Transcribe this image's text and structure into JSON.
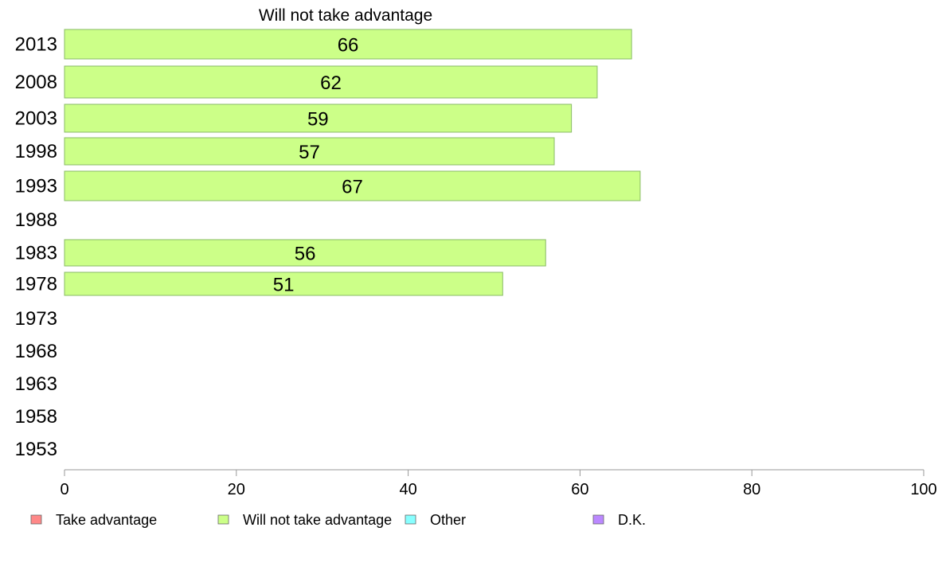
{
  "chart_data": {
    "type": "bar",
    "orientation": "horizontal",
    "title": "Will not take advantage",
    "categories": [
      "2013",
      "2008",
      "2003",
      "1998",
      "1993",
      "1988",
      "1983",
      "1978",
      "1973",
      "1968",
      "1963",
      "1958",
      "1953"
    ],
    "series": [
      {
        "name": "Will not take advantage",
        "color": "#ccff88",
        "values": [
          66,
          62,
          59,
          57,
          67,
          null,
          56,
          51,
          null,
          null,
          null,
          null,
          null
        ]
      }
    ],
    "xlim": [
      0,
      100
    ],
    "xticks": [
      0,
      20,
      40,
      60,
      80,
      100
    ],
    "xtick_labels": [
      "0",
      "20",
      "40",
      "60",
      "80",
      "100"
    ],
    "grid": false,
    "legend_position": "bottom",
    "legend": [
      {
        "label": "Take advantage",
        "color": "#ff8888"
      },
      {
        "label": "Will not take advantage",
        "color": "#ccff88"
      },
      {
        "label": "Other",
        "color": "#88ffff"
      },
      {
        "label": "D.K.",
        "color": "#bb88ff"
      }
    ]
  }
}
